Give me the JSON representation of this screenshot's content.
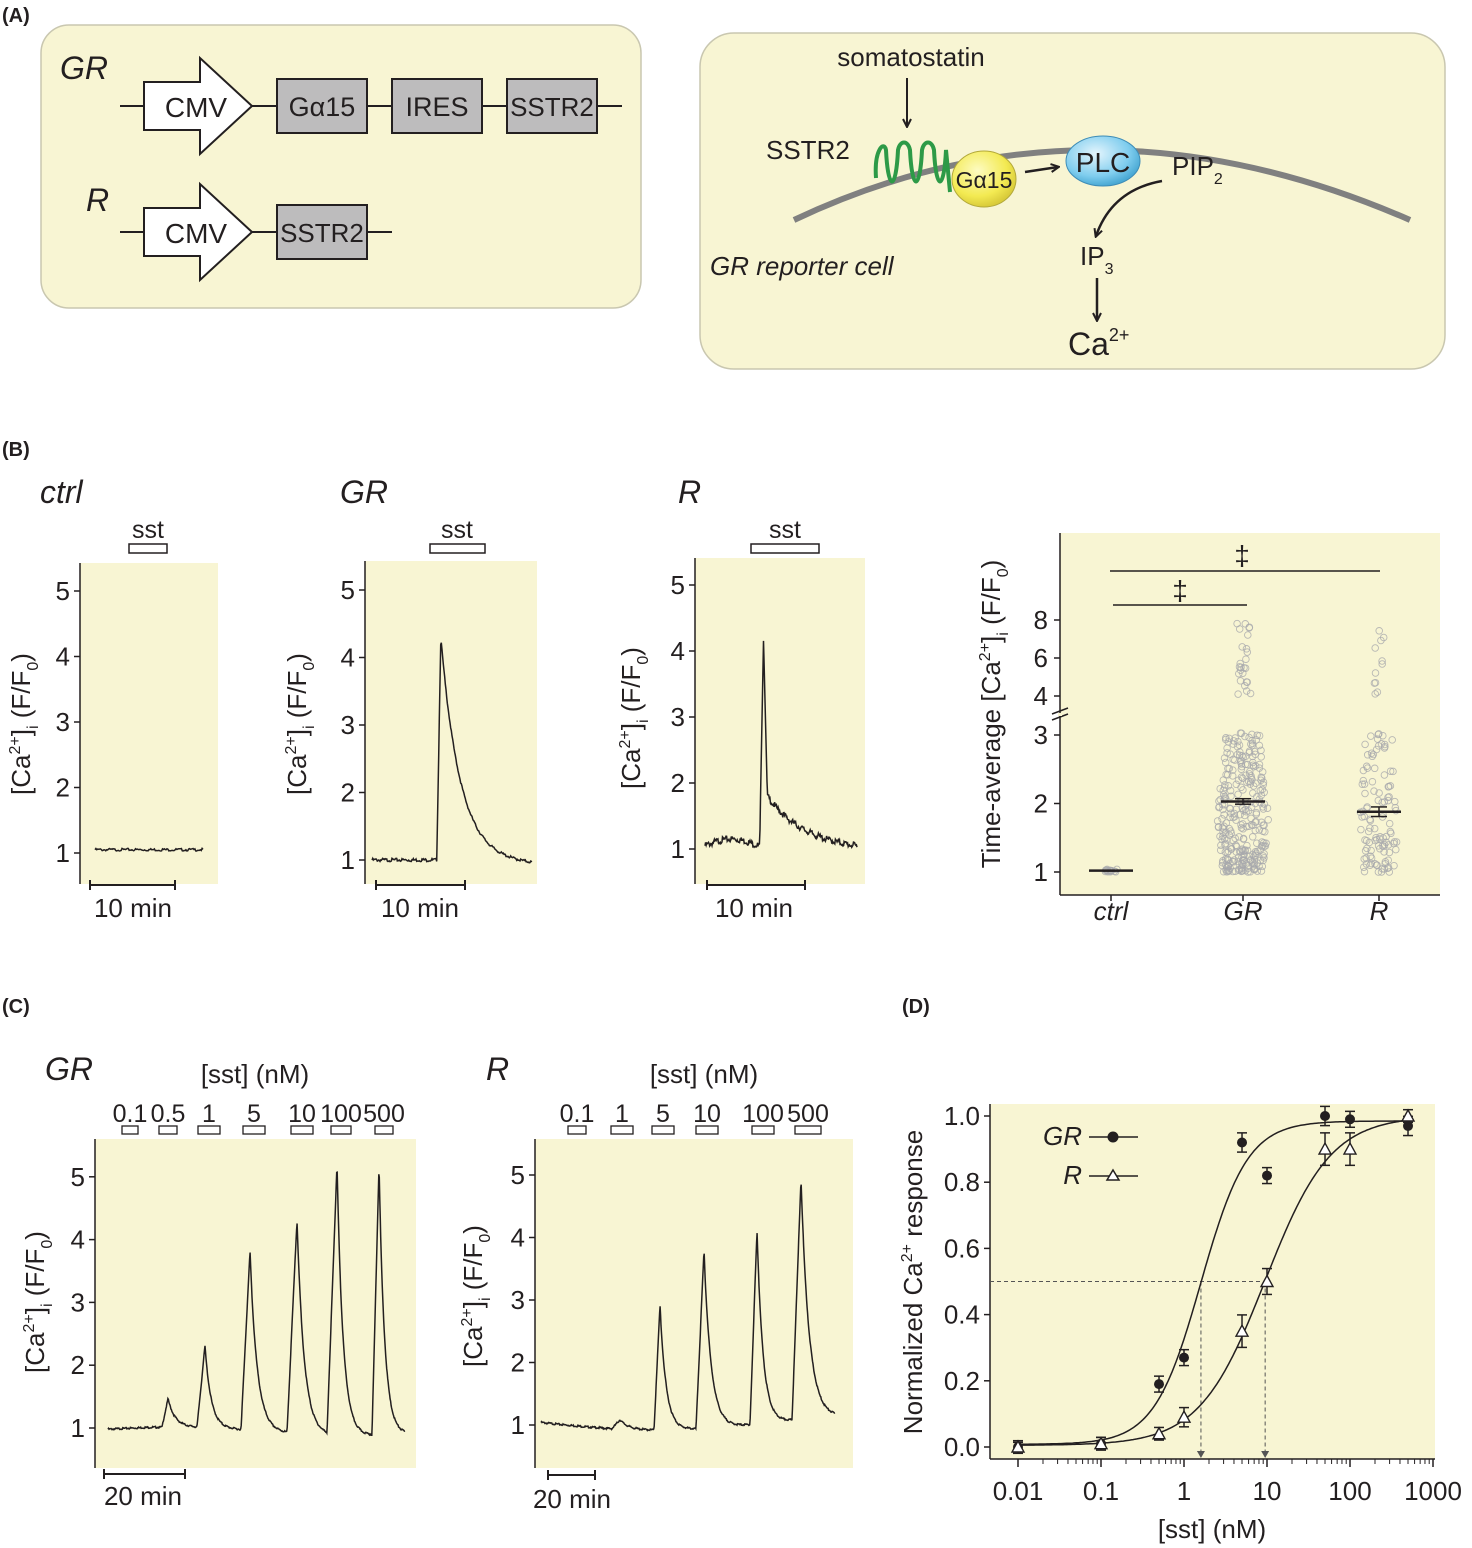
{
  "panels": {
    "A": "(A)",
    "B": "(B)",
    "C": "(C)",
    "D": "(D)"
  },
  "panelA": {
    "construct_gr": {
      "label": "GR",
      "promoter": "CMV",
      "boxes": [
        "Gα15",
        "IRES",
        "SSTR2"
      ]
    },
    "construct_r": {
      "label": "R",
      "promoter": "CMV",
      "boxes": [
        "SSTR2"
      ]
    },
    "pathway": {
      "somatostatin": "somatostatin",
      "sstr2": "SSTR2",
      "galpha": "Gα15",
      "plc": "PLC",
      "pip": "PIP",
      "pip_sub": "2",
      "ip": "IP",
      "ip_sub": "3",
      "ca": "Ca",
      "ca_sup": "2+",
      "cell": "GR reporter cell"
    }
  },
  "panelB": {
    "traces": [
      {
        "title": "ctrl",
        "stim": "sst",
        "scale": "10 min",
        "yticks": [
          "1",
          "2",
          "3",
          "4",
          "5"
        ],
        "ylabel_main": "[Ca",
        "ylabel_sup": "2+",
        "ylabel_mid": "]",
        "ylabel_sub": "i",
        "ylabel_end": " (F/F",
        "ylabel_sub0": "0",
        "ylabel_close": ")"
      },
      {
        "title": "GR",
        "stim": "sst",
        "scale": "10 min",
        "yticks": [
          "1",
          "2",
          "3",
          "4",
          "5"
        ]
      },
      {
        "title": "R",
        "stim": "sst",
        "scale": "10 min",
        "yticks": [
          "1",
          "2",
          "3",
          "4",
          "5"
        ]
      }
    ],
    "scatter": {
      "ylabel_pre": "Time-average [Ca",
      "ylabel_sup": "2+",
      "ylabel_mid": "]",
      "ylabel_sub": "i",
      "ylabel_end": " (F/F",
      "ylabel_sub0": "0",
      "ylabel_close": ")",
      "groups": [
        "ctrl",
        "GR",
        "R"
      ],
      "yticks_low": [
        "1",
        "2",
        "3"
      ],
      "yticks_high": [
        "4",
        "6",
        "8"
      ],
      "sig_symbol": "‡",
      "sig_symbol_2": "‡"
    }
  },
  "panelC": {
    "gr": {
      "title": "GR",
      "conc_label": "[sst] (nM)",
      "doses": [
        "0.1",
        "0.5",
        "1",
        "5",
        "10",
        "100",
        "500"
      ],
      "scale": "20 min",
      "yticks": [
        "1",
        "2",
        "3",
        "4",
        "5"
      ]
    },
    "r": {
      "title": "R",
      "conc_label": "[sst] (nM)",
      "doses": [
        "0.1",
        "1",
        "5",
        "10",
        "100",
        "500"
      ],
      "scale": "20 min",
      "yticks": [
        "1",
        "2",
        "3",
        "4",
        "5"
      ]
    }
  },
  "chart_data": {
    "type": "scatter",
    "xlabel": "[sst] (nM)",
    "ylabel_pre": "Normalized Ca",
    "ylabel_sup": "2+",
    "ylabel_post": " response",
    "xscale": "log",
    "xlim": [
      0.01,
      1000
    ],
    "ylim": [
      0,
      1.0
    ],
    "xticks": [
      "0.01",
      "0.1",
      "1",
      "10",
      "100",
      "1000"
    ],
    "yticks": [
      "0.0",
      "0.2",
      "0.4",
      "0.6",
      "0.8",
      "1.0"
    ],
    "legend_placement": "top-left",
    "series": [
      {
        "name": "GR",
        "marker": "filled-circle",
        "x": [
          0.01,
          0.1,
          0.5,
          1,
          5,
          10,
          50,
          100,
          500
        ],
        "y": [
          0.0,
          0.01,
          0.19,
          0.27,
          0.92,
          0.82,
          1.0,
          0.99,
          0.97
        ],
        "err": [
          0.01,
          0.01,
          0.015,
          0.015,
          0.02,
          0.015,
          0.02,
          0.015,
          0.02
        ],
        "ec50": 1.6
      },
      {
        "name": "R",
        "marker": "open-triangle",
        "x": [
          0.01,
          0.1,
          0.5,
          1,
          5,
          10,
          50,
          100,
          500
        ],
        "y": [
          0.0,
          0.01,
          0.04,
          0.09,
          0.35,
          0.5,
          0.9,
          0.9,
          1.0
        ],
        "err": [
          0.005,
          0.01,
          0.01,
          0.02,
          0.04,
          0.03,
          0.04,
          0.04,
          0.01
        ],
        "ec50": 9.5
      }
    ]
  }
}
